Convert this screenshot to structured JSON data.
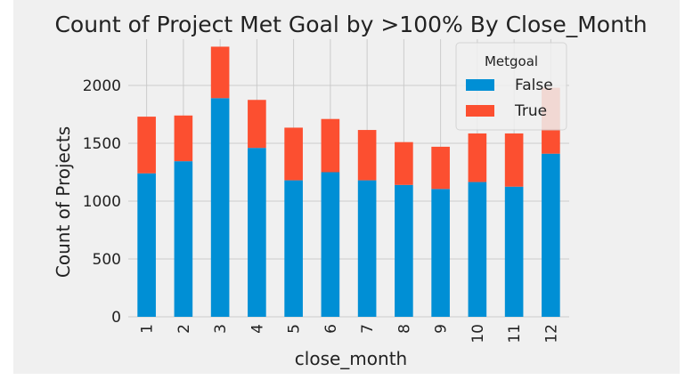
{
  "chart_data": {
    "type": "bar",
    "stacked": true,
    "title": "Count of Project Met Goal by >100% By Close_Month",
    "xlabel": "close_month",
    "ylabel": "Count of Projects",
    "categories": [
      "1",
      "2",
      "3",
      "4",
      "5",
      "6",
      "7",
      "8",
      "9",
      "10",
      "11",
      "12"
    ],
    "series": [
      {
        "name": "False",
        "color": "#008fd5",
        "values": [
          1240,
          1345,
          1890,
          1460,
          1180,
          1250,
          1180,
          1140,
          1105,
          1165,
          1125,
          1410
        ]
      },
      {
        "name": "True",
        "color": "#fc4f30",
        "values": [
          490,
          395,
          445,
          415,
          455,
          460,
          435,
          370,
          365,
          420,
          460,
          570
        ]
      }
    ],
    "ylim": [
      0,
      2400
    ],
    "yticks": [
      0,
      500,
      1000,
      1500,
      2000
    ],
    "legend": {
      "title": "Metgoal",
      "placement": "top-right"
    },
    "grid": true,
    "style": {
      "plot_background": "#f0f0f0",
      "grid_color": "#cbcbcb"
    }
  }
}
